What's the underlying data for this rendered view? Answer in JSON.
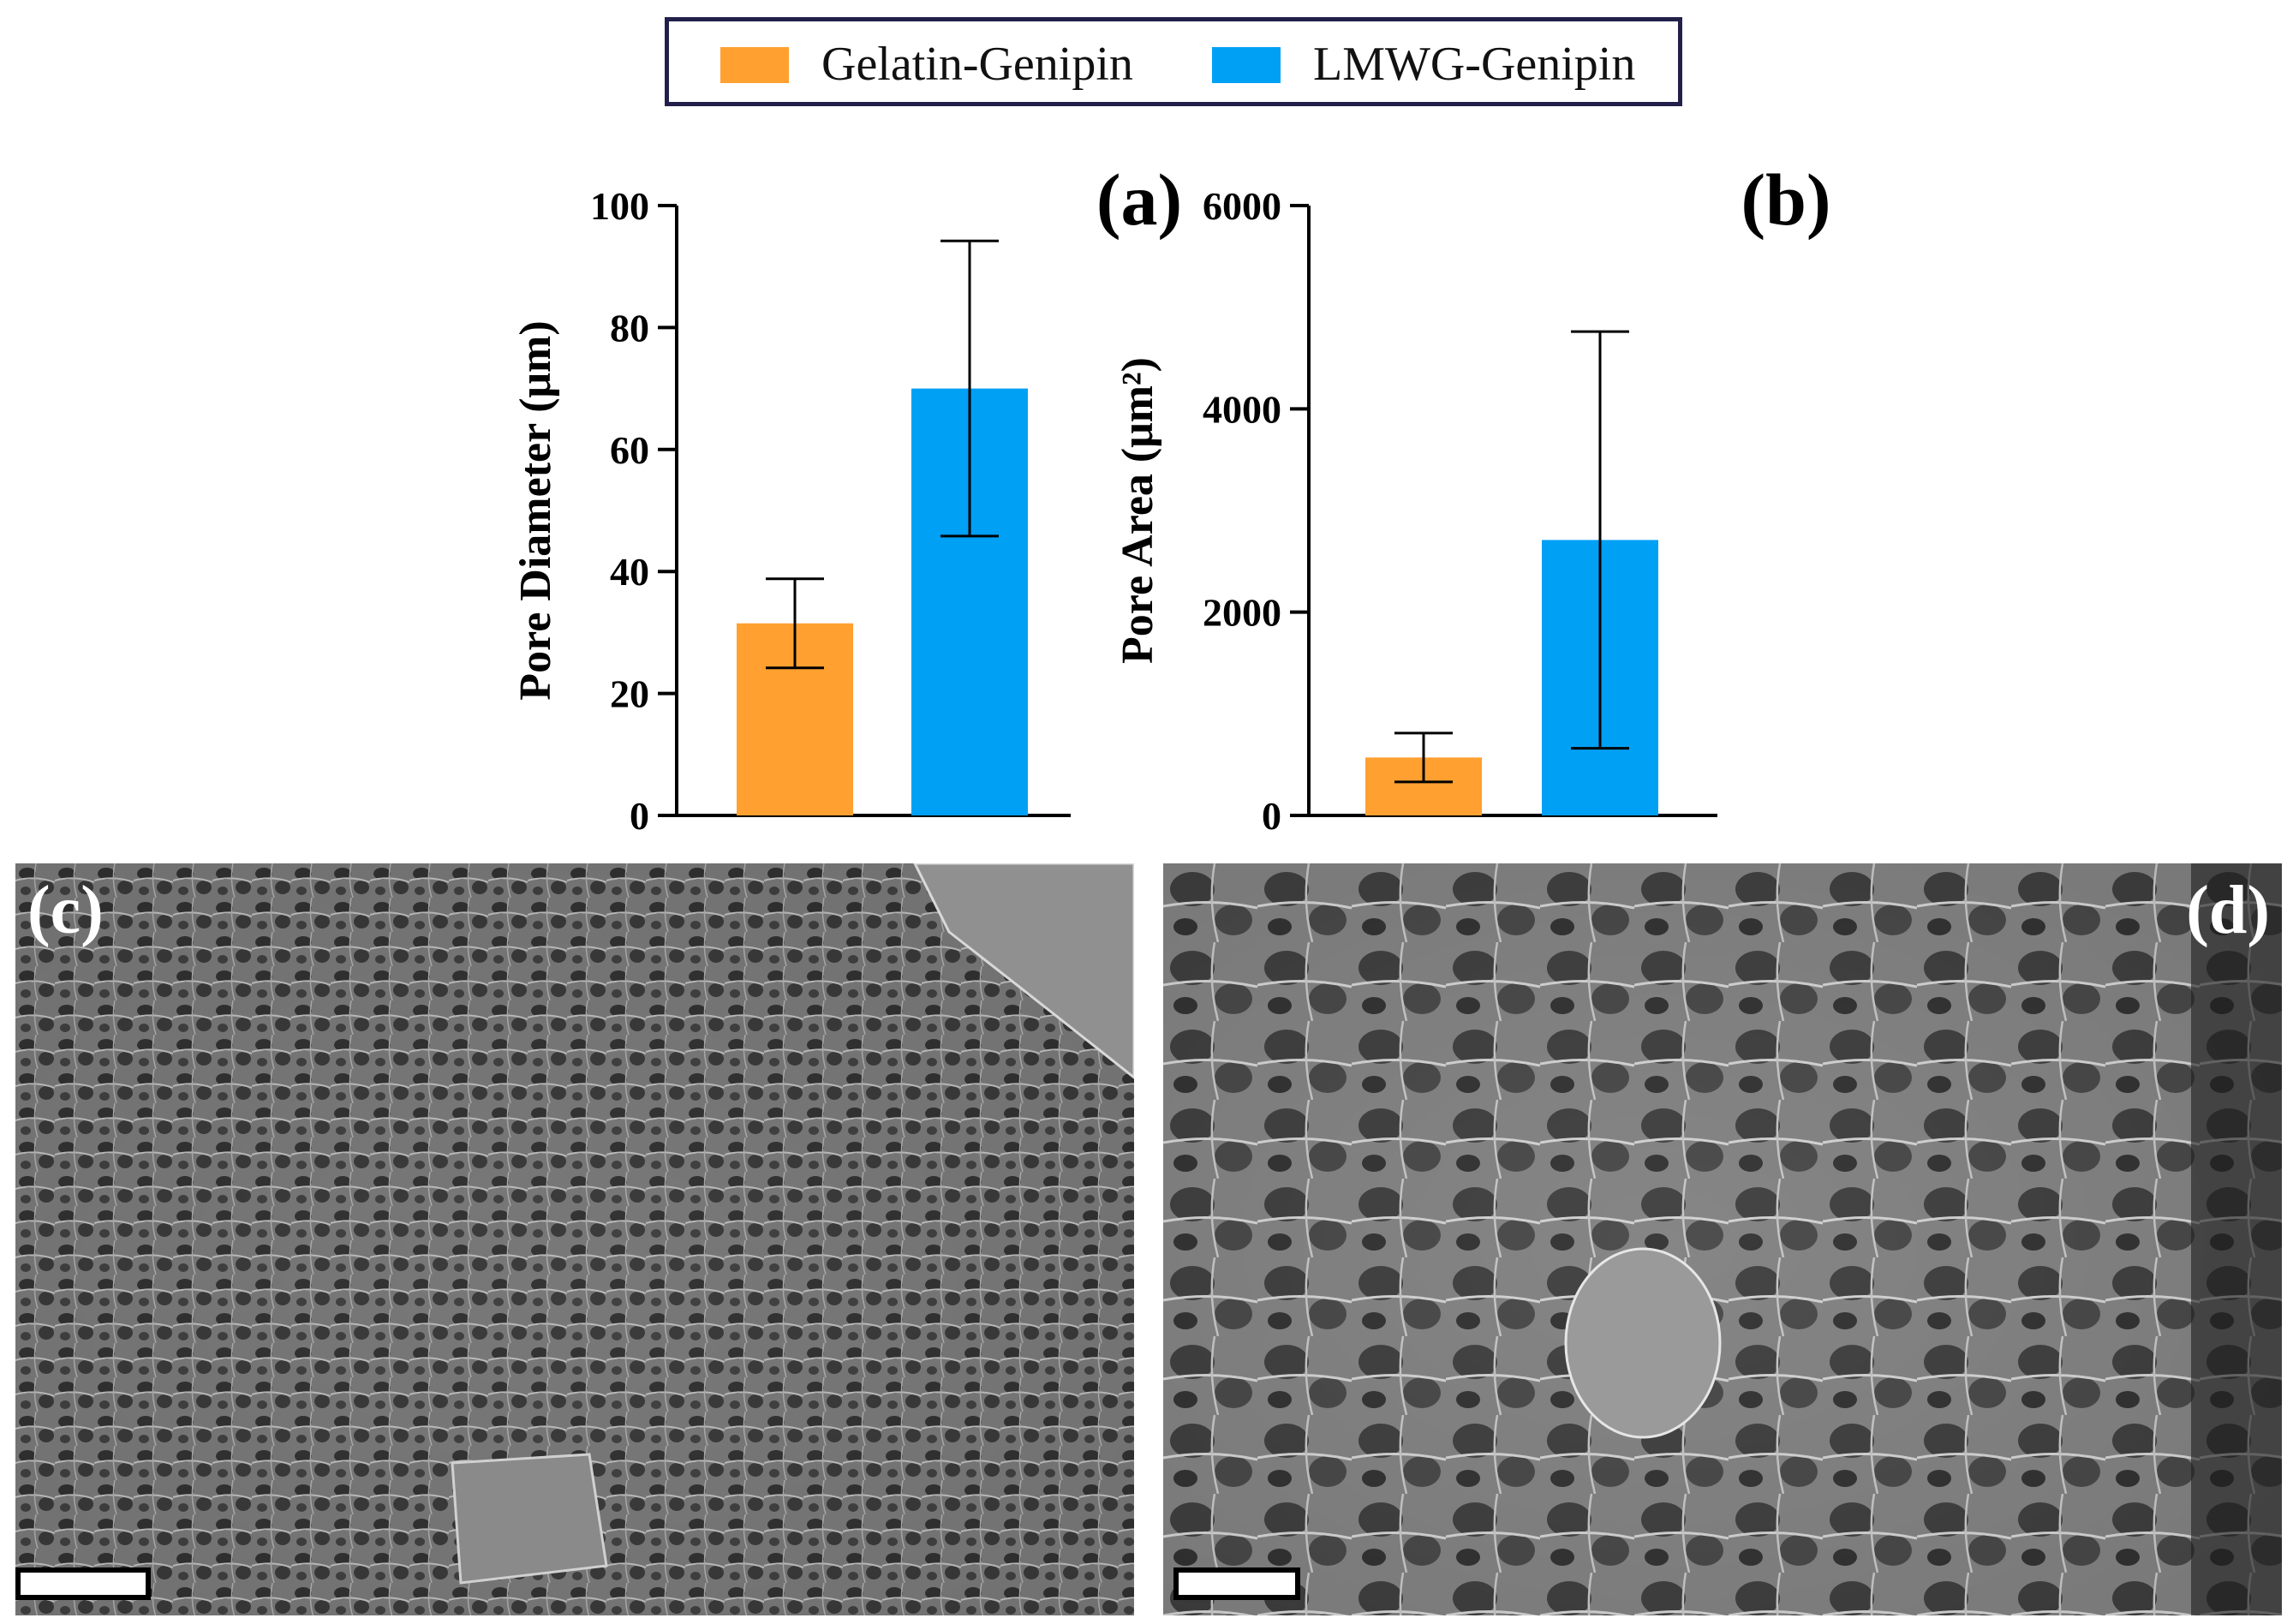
{
  "legend": {
    "items": [
      {
        "label": "Gelatin-Genipin",
        "color": "#FFA030"
      },
      {
        "label": "LMWG-Genipin",
        "color": "#00A0F5"
      }
    ]
  },
  "chart_data": [
    {
      "type": "bar",
      "panel_label": "(a)",
      "categories": [
        "Gelatin-Genipin",
        "LMWG-Genipin"
      ],
      "values": [
        31.5,
        70
      ],
      "errors": [
        7.3,
        24.2
      ],
      "colors": [
        "#FFA030",
        "#00A0F5"
      ],
      "ylabel": "Pore Diameter (μm)",
      "ylim": [
        0,
        100
      ],
      "yticks": [
        0,
        20,
        40,
        60,
        80,
        100
      ]
    },
    {
      "type": "bar",
      "panel_label": "(b)",
      "categories": [
        "Gelatin-Genipin",
        "LMWG-Genipin"
      ],
      "values": [
        570,
        2710
      ],
      "errors": [
        240,
        2050
      ],
      "colors": [
        "#FFA030",
        "#00A0F5"
      ],
      "ylabel": "Pore Area (μm²)",
      "ylim": [
        0,
        6000
      ],
      "yticks": [
        0,
        2000,
        4000,
        6000
      ]
    }
  ],
  "images": {
    "c": {
      "label": "(c)",
      "description_icon": "sem-micrograph-gelatin-genipin"
    },
    "d": {
      "label": "(d)",
      "description_icon": "sem-micrograph-lmwg-genipin"
    }
  }
}
